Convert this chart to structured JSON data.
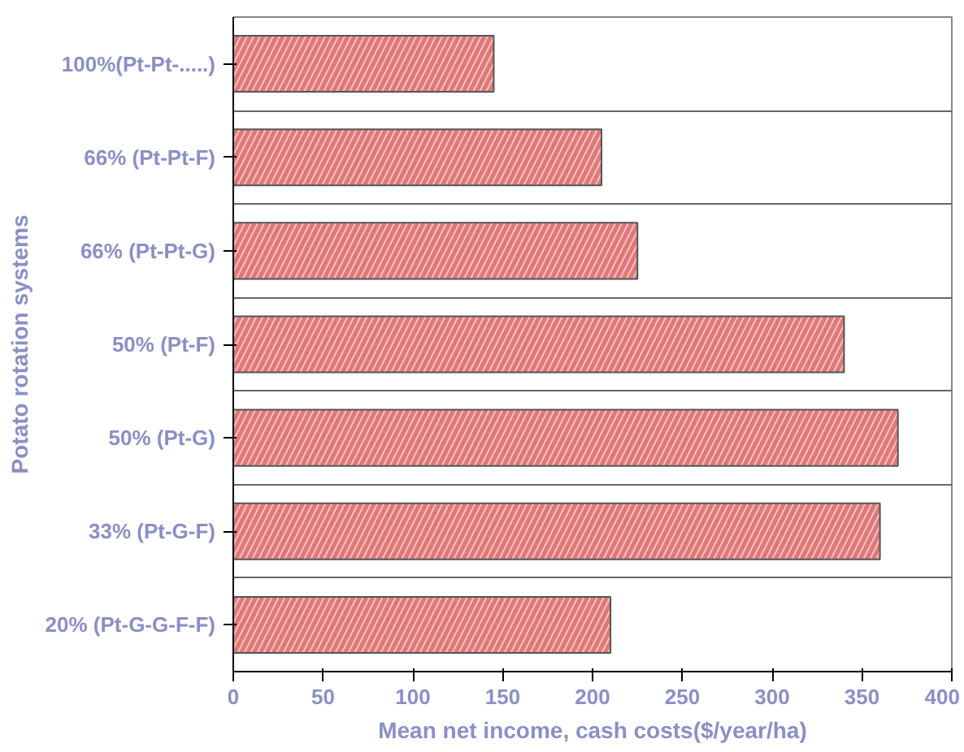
{
  "chart_data": {
    "type": "bar",
    "orientation": "horizontal",
    "ylabel": "Potato rotation systems",
    "xlabel": "Mean net income, cash costs($/year/ha)",
    "categories": [
      "100%(Pt-Pt-.....)",
      "66% (Pt-Pt-F)",
      "66% (Pt-Pt-G)",
      "50% (Pt-F)",
      "50% (Pt-G)",
      "33% (Pt-G-F)",
      "20% (Pt-G-G-F-F)"
    ],
    "values": [
      145,
      205,
      225,
      340,
      370,
      360,
      210
    ],
    "color": "#e07878",
    "xlim": [
      0,
      400
    ],
    "xticks": [
      0,
      50,
      100,
      150,
      200,
      250,
      300,
      350,
      400
    ],
    "grid": "y"
  }
}
